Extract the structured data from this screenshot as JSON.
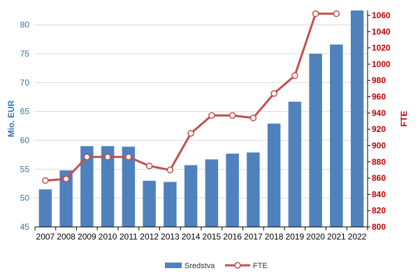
{
  "chart_data": {
    "type": "bar+line",
    "categories": [
      "2007",
      "2008",
      "2009",
      "2010",
      "2011",
      "2012",
      "2013",
      "2014",
      "2015",
      "2016",
      "2017",
      "2018",
      "2019",
      "2020",
      "2021",
      "2022"
    ],
    "series": [
      {
        "name": "Sredstva",
        "type": "bar",
        "axis": "left",
        "color": "#4f81bd",
        "values": [
          51.5,
          54.8,
          59.0,
          59.0,
          58.9,
          53.0,
          52.8,
          55.7,
          56.7,
          57.7,
          57.9,
          62.9,
          66.7,
          75.0,
          76.6,
          82.8
        ]
      },
      {
        "name": "FTE",
        "type": "line",
        "axis": "right",
        "color": "#c0504d",
        "values": [
          857,
          859,
          886,
          886,
          886,
          875,
          870,
          915,
          937,
          937,
          934,
          964,
          986,
          1062,
          1062,
          null
        ]
      }
    ],
    "y_left": {
      "label": "Mio. EUR",
      "min": 45,
      "max": 82.5,
      "ticks": [
        45,
        50,
        55,
        60,
        65,
        70,
        75,
        80
      ]
    },
    "y_right": {
      "label": "FTE",
      "min": 800,
      "max": 1066,
      "ticks": [
        800,
        820,
        840,
        860,
        880,
        900,
        920,
        940,
        960,
        980,
        1000,
        1020,
        1040,
        1060
      ]
    },
    "grid": true,
    "legend_position": "bottom"
  }
}
